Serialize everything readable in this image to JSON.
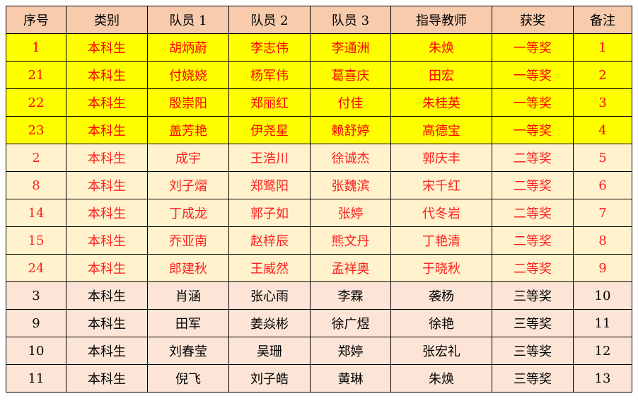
{
  "headers": [
    "序号",
    "类别",
    "队员 1",
    "队员 2",
    "队员 3",
    "指导教师",
    "获奖",
    "备注"
  ],
  "colors": {
    "header_bg": "#f8cbad",
    "tier1_bg": "#ffff00",
    "tier1_text": "#ff0000",
    "tier2_bg": "#fff2cc",
    "tier2_text": "#ff2020",
    "tier3_bg": "#fce4d6",
    "tier3_text": "#000000"
  },
  "rows": [
    {
      "tier": "tier1",
      "cells": [
        "1",
        "本科生",
        "胡炳蔚",
        "李志伟",
        "李通洲",
        "朱焕",
        "一等奖",
        "1"
      ]
    },
    {
      "tier": "tier1",
      "cells": [
        "21",
        "本科生",
        "付娆娆",
        "杨军伟",
        "葛喜庆",
        "田宏",
        "一等奖",
        "2"
      ]
    },
    {
      "tier": "tier1",
      "cells": [
        "22",
        "本科生",
        "殷崇阳",
        "郑丽红",
        "付佳",
        "朱桂英",
        "一等奖",
        "3"
      ]
    },
    {
      "tier": "tier1",
      "cells": [
        "23",
        "本科生",
        "盖芳艳",
        "伊尧星",
        "赖舒婷",
        "高德宝",
        "一等奖",
        "4"
      ]
    },
    {
      "tier": "tier2",
      "cells": [
        "2",
        "本科生",
        "成宇",
        "王浩川",
        "徐诚杰",
        "郭庆丰",
        "二等奖",
        "5"
      ]
    },
    {
      "tier": "tier2",
      "cells": [
        "8",
        "本科生",
        "刘子熠",
        "郑鹭阳",
        "张魏滨",
        "宋千红",
        "二等奖",
        "6"
      ]
    },
    {
      "tier": "tier2",
      "cells": [
        "14",
        "本科生",
        "丁成龙",
        "郭子如",
        "张婷",
        "代冬岩",
        "二等奖",
        "7"
      ]
    },
    {
      "tier": "tier2",
      "cells": [
        "15",
        "本科生",
        "乔亚南",
        "赵梓辰",
        "熊文丹",
        "丁艳清",
        "二等奖",
        "8"
      ]
    },
    {
      "tier": "tier2",
      "cells": [
        "24",
        "本科生",
        "郎建秋",
        "王威然",
        "孟祥奥",
        "于晓秋",
        "二等奖",
        "9"
      ]
    },
    {
      "tier": "tier3",
      "cells": [
        "3",
        "本科生",
        "肖涵",
        "张心雨",
        "李霖",
        "袭杨",
        "三等奖",
        "10"
      ]
    },
    {
      "tier": "tier3",
      "cells": [
        "9",
        "本科生",
        "田军",
        "姜焱彬",
        "徐广煜",
        "徐艳",
        "三等奖",
        "11"
      ]
    },
    {
      "tier": "tier3",
      "cells": [
        "10",
        "本科生",
        "刘春莹",
        "吴珊",
        "郑婷",
        "张宏礼",
        "三等奖",
        "12"
      ]
    },
    {
      "tier": "tier3",
      "cells": [
        "11",
        "本科生",
        "倪飞",
        "刘子皓",
        "黄琳",
        "朱焕",
        "三等奖",
        "13"
      ]
    }
  ]
}
